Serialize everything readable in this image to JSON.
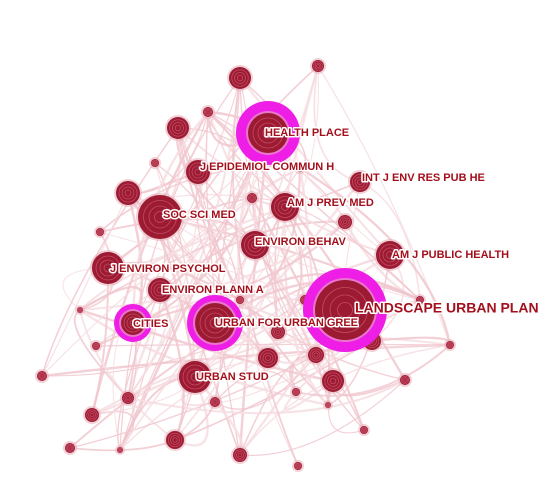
{
  "nodes": [
    {
      "label": "HEALTH PLACE"
    },
    {
      "label": "J EPIDEMIOL COMMUN H"
    },
    {
      "label": "INT J ENV RES PUB HE"
    },
    {
      "label": "SOC SCI MED"
    },
    {
      "label": "AM J PREV MED"
    },
    {
      "label": "ENVIRON BEHAV"
    },
    {
      "label": "AM J PUBLIC HEALTH"
    },
    {
      "label": "J ENVIRON PSYCHOL"
    },
    {
      "label": "ENVIRON PLANN A"
    },
    {
      "label": "LANDSCAPE URBAN PLAN"
    },
    {
      "label": "CITIES"
    },
    {
      "label": "URBAN FOR URBAN GREE"
    },
    {
      "label": "URBAN STUD"
    }
  ]
}
